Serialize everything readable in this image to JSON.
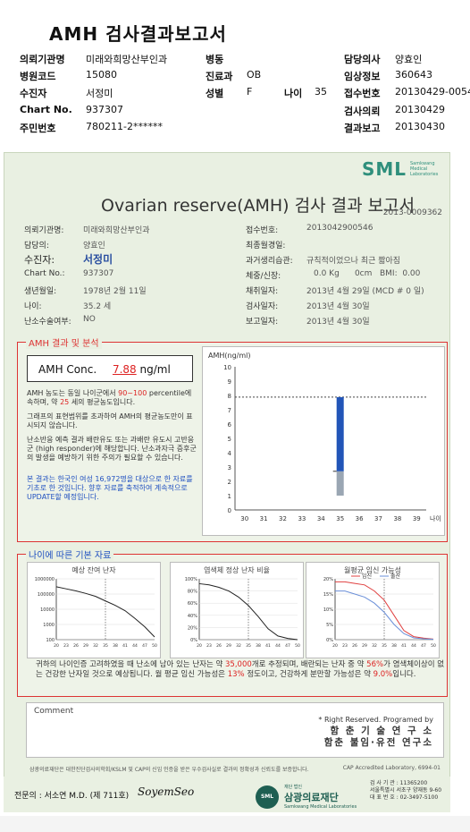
{
  "doc_title": "AMH 검사결과보고서",
  "header": {
    "rows": [
      [
        {
          "label": "의뢰기관명",
          "value": "미래와희망산부인과"
        },
        {
          "label": "병동",
          "value": ""
        },
        {
          "label": "담당의사",
          "value": "양효인"
        }
      ],
      [
        {
          "label": "병원코드",
          "value": "15080"
        },
        {
          "label": "진료과",
          "value": "OB"
        },
        {
          "label": "임상정보",
          "value": "360643"
        }
      ],
      [
        {
          "label": "수진자",
          "value": "서정미"
        },
        {
          "label": "성별",
          "value": "F"
        },
        {
          "label": "나이",
          "value": "35"
        },
        {
          "label": "접수번호",
          "value": "20130429-0054"
        }
      ],
      [
        {
          "label": "Chart No.",
          "value": "937307"
        },
        {
          "label": "",
          "value": ""
        },
        {
          "label": "검사의뢰",
          "value": "20130429"
        }
      ],
      [
        {
          "label": "주민번호",
          "value": "780211-2******"
        },
        {
          "label": "",
          "value": ""
        },
        {
          "label": "결과보고",
          "value": "20130430"
        }
      ]
    ]
  },
  "report": {
    "logo": "SML",
    "logo_sub": "Samkwang Medical Laboratories",
    "title": "Ovarian reserve(AMH) 검사 결과 보고서",
    "report_no": "2013-0009362",
    "left_info": [
      {
        "label": "의뢰기관명:",
        "value": "미래와희망산부인과"
      },
      {
        "label": "담당의:",
        "value": "양효인"
      },
      {
        "label": "수진자:",
        "value": "서정미"
      },
      {
        "label": "Chart No.:",
        "value": "937307"
      },
      {
        "label": "생년월일:",
        "value": "1978년 2월 11일"
      },
      {
        "label": "나이:",
        "value": "35.2 세"
      },
      {
        "label": "난소수술여부:",
        "value": "NO"
      }
    ],
    "right_info": [
      {
        "label": "접수번호:",
        "value": "2013042900546"
      },
      {
        "label": "최종월경일:",
        "value": ""
      },
      {
        "label": "과거생리습관:",
        "value": "규칙적이었으나 최근 짧아짐"
      },
      {
        "label": "체중/신장:",
        "value": "0.0 Kg      0cm   BMI:  0.00"
      },
      {
        "label": "채취일자:",
        "value": "2013년 4월 29일  (MCD # 0 일)"
      },
      {
        "label": "검사일자:",
        "value": "2013년 4월 30일"
      },
      {
        "label": "보고일자:",
        "value": "2013년 4월 30일"
      }
    ],
    "amh_section_label": "AMH 결과 및 분석",
    "amh_conc_label": "AMH Conc.",
    "amh_conc_value": "7.88",
    "amh_conc_unit": "ng/ml",
    "amh_text": {
      "p1a": "AMH 농도는 동일 나이군에서",
      "p1b": "90~100",
      "p1c": "percentile에 속하며, 약",
      "p1d": "25",
      "p1e": "세의 평균농도입니다.",
      "p2": "그래프의 표현범위를 초과하여 AMH의 평균농도만이 표시되지 않습니다.",
      "p3": "난소반응 예측 결과 배란유도 또는 과배란 유도시 고반응군 (high responder)에 해당합니다. 난소과자극 증후군의 발생을 예방하기 위한 주의가 필요할 수 있습니다.",
      "p4": "본 결과는 한국인 여성 16,972명을 대상으로 한 자료를 기초로 한 것입니다. 향후 자료를 축적하여 계속적으로 UPDATE할 예정입니다."
    },
    "age_section_label": "나이에 따른 기본 자료",
    "mini_titles": [
      "예상 잔여 난자",
      "염색체 정상 난자 비율",
      "월평균 임신 가능성"
    ],
    "mini_legend": [
      "임신",
      "출산"
    ],
    "age_text": {
      "a": "귀하의 나이인증 고려하였을 때 난소에 남아 있는 난자는 약",
      "b": "35,000",
      "c": "개로 추정되며, 배란되는 난자 중 약",
      "d": "56%",
      "e": "가 염색체이상이 없는 건강한 난자일 것으로 예상됩니다. 월 평균 임신 가능성은",
      "f": "13%",
      "g": "정도이고, 건강하게 분만할 가능성은 약",
      "h": "9.0%",
      "i": "입니다."
    },
    "comment_label": "Comment",
    "rights": "* Right Reserved. Programed by",
    "inst1": "함 춘 기 술 연 구 소",
    "inst2": "함춘 불임·유전 연구소",
    "footnote": "삼광의료재단은 대한진단검사의학회/KSLM 및 CAP의 신임 인증을 받은 우수검사실로 결과의 정확성과 신뢰도를 보증합니다.",
    "cap": "CAP Accredited Laboratory, 6994-01",
    "doctor": "전문의 : 서소연 M.D. (제 711호)",
    "signature": "SoyemSeo",
    "foundation": "삼광의료재단",
    "foundation_small": "재단 법인",
    "foundation_sub": "Samkwang Medical Laboratories",
    "address": [
      "검 사 기 관 : 11365200",
      "서울특별시 서초구 양재동 9-60",
      "대 표 번 호 : 02-3497-5100"
    ]
  },
  "chart_data": [
    {
      "type": "bar",
      "title": "AMH(ng/ml)",
      "xlabel": "나이",
      "categories": [
        30,
        31,
        32,
        33,
        34,
        35,
        36,
        37,
        38,
        39
      ],
      "ylim": [
        0,
        10
      ],
      "yticks": [
        0,
        1,
        2,
        3,
        4,
        5,
        6,
        7,
        8,
        9,
        10
      ],
      "reference_line": 7.88,
      "series": [
        {
          "name": "",
          "color": "#9aa6b3",
          "values": [
            null,
            null,
            null,
            null,
            null,
            2.7,
            null,
            null,
            null,
            null
          ]
        },
        {
          "name": "",
          "color": "#2255b8",
          "values": [
            null,
            null,
            null,
            null,
            null,
            5.1,
            null,
            null,
            null,
            null
          ]
        }
      ],
      "bar_range": {
        "category": 35,
        "low": 1.0,
        "mid": 2.7,
        "high": 7.88
      }
    },
    {
      "type": "line",
      "title": "예상 잔여 난자",
      "y_scale": "log",
      "yticks": [
        1000000,
        100000,
        10000,
        1000,
        100
      ],
      "ytick_labels": [
        "1000000",
        "100000",
        "10000",
        "1000",
        "100"
      ],
      "xticks": [
        20,
        23,
        26,
        29,
        32,
        35,
        38,
        41,
        44,
        47,
        50
      ],
      "x": [
        20,
        23,
        26,
        29,
        32,
        35,
        38,
        41,
        44,
        47,
        50
      ],
      "y": [
        300000,
        220000,
        160000,
        110000,
        70000,
        35000,
        18000,
        8000,
        2500,
        700,
        150
      ]
    },
    {
      "type": "line",
      "title": "염색체 정상 난자 비율",
      "yticks": [
        0,
        20,
        40,
        60,
        80,
        100
      ],
      "ytick_labels": [
        "0%",
        "20%",
        "40%",
        "60%",
        "80%",
        "100%"
      ],
      "xticks": [
        20,
        23,
        26,
        29,
        32,
        35,
        38,
        41,
        44,
        47,
        50
      ],
      "x": [
        20,
        23,
        26,
        29,
        32,
        35,
        38,
        41,
        44,
        47,
        50
      ],
      "y": [
        92,
        90,
        86,
        80,
        70,
        56,
        38,
        18,
        6,
        2,
        0
      ]
    },
    {
      "type": "line",
      "title": "월평균 임신 가능성",
      "yticks": [
        0,
        5,
        10,
        15,
        20
      ],
      "ytick_labels": [
        "0%",
        "5%",
        "10%",
        "15%",
        "20%"
      ],
      "xticks": [
        20,
        23,
        26,
        29,
        32,
        35,
        38,
        41,
        44,
        47,
        50
      ],
      "series": [
        {
          "name": "임신",
          "color": "#e04040",
          "x": [
            20,
            23,
            26,
            29,
            32,
            35,
            38,
            41,
            44,
            47,
            50
          ],
          "y": [
            19,
            19,
            18.5,
            18,
            16,
            13,
            8,
            3,
            1,
            0.5,
            0.2
          ]
        },
        {
          "name": "출산",
          "color": "#6a8fd8",
          "x": [
            20,
            23,
            26,
            29,
            32,
            35,
            38,
            41,
            44,
            47,
            50
          ],
          "y": [
            16,
            16,
            15,
            14,
            12,
            9,
            5,
            2,
            0.6,
            0.3,
            0.1
          ]
        }
      ]
    }
  ]
}
